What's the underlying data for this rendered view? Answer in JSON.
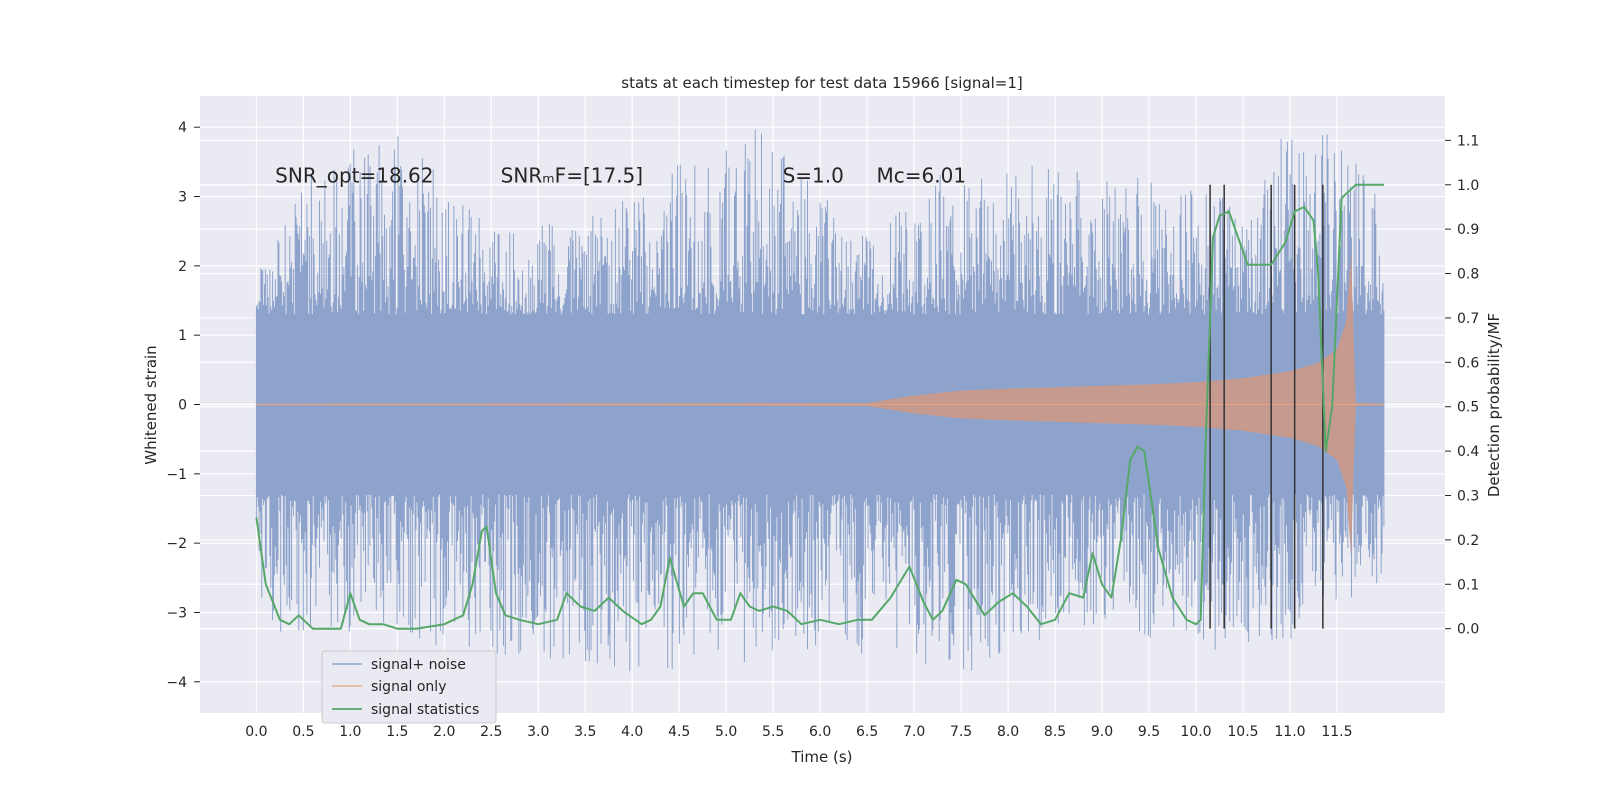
{
  "chart_data": {
    "type": "line",
    "title": "stats at each timestep for test data 15966 [signal=1]",
    "xlabel": "Time (s)",
    "ylabel_left": "Whitened strain",
    "ylabel_right": "Detection probability/MF",
    "xlim": [
      -0.6,
      12.65
    ],
    "ylim_left": [
      -4.45,
      4.45
    ],
    "ylim_right": [
      -0.19,
      1.2
    ],
    "grid": true,
    "x_ticks": [
      "0.0",
      "0.5",
      "1.0",
      "1.5",
      "2.0",
      "2.5",
      "3.0",
      "3.5",
      "4.0",
      "4.5",
      "5.0",
      "5.5",
      "6.0",
      "6.5",
      "7.0",
      "7.5",
      "8.0",
      "8.5",
      "9.0",
      "9.5",
      "10.0",
      "10.5",
      "11.0",
      "11.5"
    ],
    "y_left_ticks": [
      "−4",
      "−3",
      "−2",
      "−1",
      "0",
      "1",
      "2",
      "3",
      "4"
    ],
    "y_right_ticks": [
      "0.0",
      "0.1",
      "0.2",
      "0.3",
      "0.4",
      "0.5",
      "0.6",
      "0.7",
      "0.8",
      "0.9",
      "1.0",
      "1.1"
    ],
    "annotations": [
      {
        "text": "SNR_opt=18.62",
        "x": 0.2,
        "y": 3.3
      },
      {
        "text": "SNRₘF=[17.5]",
        "x": 2.6,
        "y": 3.3
      },
      {
        "text": "S=1.0",
        "x": 5.6,
        "y": 3.3
      },
      {
        "text": "Mᴄ=6.01",
        "x": 6.6,
        "y": 3.3
      }
    ],
    "legend": {
      "placement": "lower-left",
      "entries": [
        "signal+ noise",
        "signal only",
        "signal statistics"
      ]
    },
    "colors": {
      "signal_noise": "#8ea3cc",
      "signal_only": "#dd8452",
      "signal_statistics": "#55a868",
      "vlines": "#333333",
      "axes_bg": "#eaeaf2"
    },
    "series": [
      {
        "name": "signal+ noise",
        "axis": "left",
        "x_range": [
          0.0,
          12.0
        ],
        "envelope_upper": 1.3,
        "envelope_lower": -1.3,
        "spike_max": [
          [
            0.0,
            1.9
          ],
          [
            0.3,
            2.6
          ],
          [
            0.65,
            3.6
          ],
          [
            1.5,
            4.0
          ],
          [
            2.35,
            2.7
          ],
          [
            3.4,
            2.6
          ],
          [
            5.3,
            4.1
          ],
          [
            6.4,
            2.5
          ],
          [
            7.3,
            3.4
          ],
          [
            8.8,
            3.5
          ],
          [
            9.3,
            3.3
          ],
          [
            10.3,
            3.0
          ],
          [
            10.75,
            3.3
          ],
          [
            10.9,
            4.1
          ],
          [
            11.15,
            3.7
          ],
          [
            11.45,
            4.0
          ],
          [
            11.95,
            3.0
          ]
        ],
        "spike_min": [
          [
            0.0,
            -3.3
          ],
          [
            0.7,
            -3.3
          ],
          [
            1.5,
            -3.4
          ],
          [
            3.5,
            -3.8
          ],
          [
            4.9,
            -3.95
          ],
          [
            5.6,
            -3.5
          ],
          [
            7.6,
            -3.85
          ],
          [
            9.1,
            -3.3
          ],
          [
            10.05,
            -3.6
          ],
          [
            11.0,
            -3.4
          ],
          [
            11.95,
            -2.6
          ]
        ]
      },
      {
        "name": "signal only",
        "axis": "left",
        "x": [
          0.0,
          6.5,
          7.0,
          7.5,
          8.0,
          8.5,
          9.0,
          9.5,
          10.0,
          10.5,
          11.0,
          11.3,
          11.5,
          11.6,
          11.65,
          11.7,
          12.0
        ],
        "amplitude": [
          0.01,
          0.02,
          0.13,
          0.2,
          0.23,
          0.25,
          0.27,
          0.29,
          0.32,
          0.38,
          0.48,
          0.6,
          0.8,
          1.2,
          2.2,
          0.02,
          0.01
        ]
      },
      {
        "name": "signal statistics",
        "axis": "right",
        "x": [
          0.0,
          0.1,
          0.25,
          0.35,
          0.45,
          0.6,
          0.75,
          0.9,
          1.0,
          1.1,
          1.2,
          1.35,
          1.5,
          1.7,
          2.0,
          2.2,
          2.3,
          2.4,
          2.45,
          2.55,
          2.65,
          2.8,
          3.0,
          3.2,
          3.3,
          3.45,
          3.6,
          3.75,
          3.9,
          4.1,
          4.2,
          4.3,
          4.4,
          4.55,
          4.65,
          4.75,
          4.9,
          5.05,
          5.15,
          5.25,
          5.35,
          5.5,
          5.65,
          5.8,
          6.0,
          6.2,
          6.4,
          6.55,
          6.75,
          6.95,
          7.1,
          7.2,
          7.3,
          7.45,
          7.55,
          7.75,
          7.9,
          8.05,
          8.2,
          8.35,
          8.5,
          8.65,
          8.8,
          8.9,
          9.0,
          9.1,
          9.2,
          9.3,
          9.38,
          9.45,
          9.6,
          9.75,
          9.9,
          10.0,
          10.05,
          10.1,
          10.18,
          10.25,
          10.35,
          10.55,
          10.8,
          10.95,
          11.05,
          11.15,
          11.25,
          11.3,
          11.38,
          11.45,
          11.55,
          11.7,
          11.85,
          12.0
        ],
        "values": [
          0.25,
          0.1,
          0.02,
          0.01,
          0.03,
          0.0,
          0.0,
          0.0,
          0.08,
          0.02,
          0.01,
          0.01,
          0.0,
          0.0,
          0.01,
          0.03,
          0.1,
          0.22,
          0.23,
          0.08,
          0.03,
          0.02,
          0.01,
          0.02,
          0.08,
          0.05,
          0.04,
          0.07,
          0.04,
          0.01,
          0.02,
          0.05,
          0.16,
          0.05,
          0.08,
          0.08,
          0.02,
          0.02,
          0.08,
          0.05,
          0.04,
          0.05,
          0.04,
          0.01,
          0.02,
          0.01,
          0.02,
          0.02,
          0.07,
          0.14,
          0.06,
          0.02,
          0.04,
          0.11,
          0.1,
          0.03,
          0.06,
          0.08,
          0.05,
          0.01,
          0.02,
          0.08,
          0.07,
          0.17,
          0.1,
          0.07,
          0.2,
          0.38,
          0.41,
          0.4,
          0.18,
          0.07,
          0.02,
          0.01,
          0.02,
          0.4,
          0.88,
          0.93,
          0.94,
          0.82,
          0.82,
          0.87,
          0.94,
          0.95,
          0.92,
          0.8,
          0.4,
          0.5,
          0.97,
          1.0,
          1.0,
          1.0
        ]
      }
    ],
    "vertical_lines": {
      "x": [
        10.15,
        10.3,
        10.8,
        11.05,
        11.35
      ],
      "y_range_right": [
        0.0,
        1.0
      ]
    }
  }
}
